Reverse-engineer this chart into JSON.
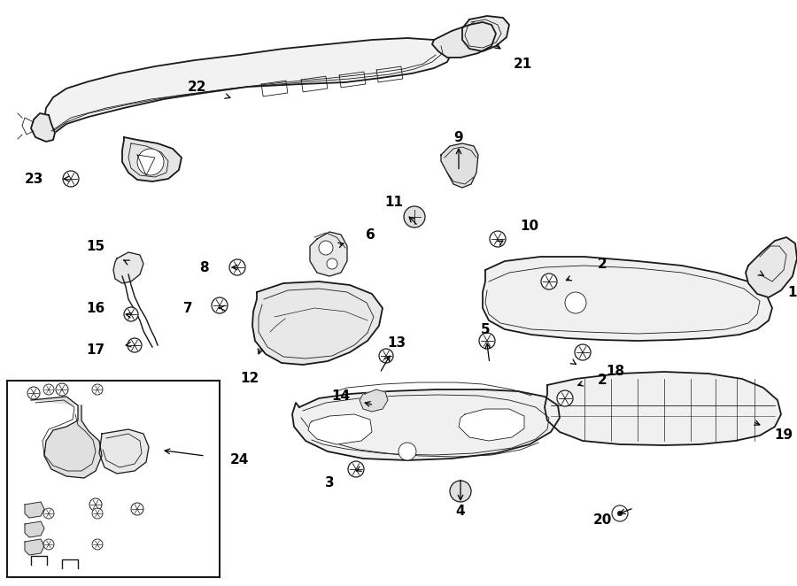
{
  "bg_color": "#ffffff",
  "line_color": "#1a1a1a",
  "fig_width": 9.0,
  "fig_height": 6.62,
  "dpi": 100
}
